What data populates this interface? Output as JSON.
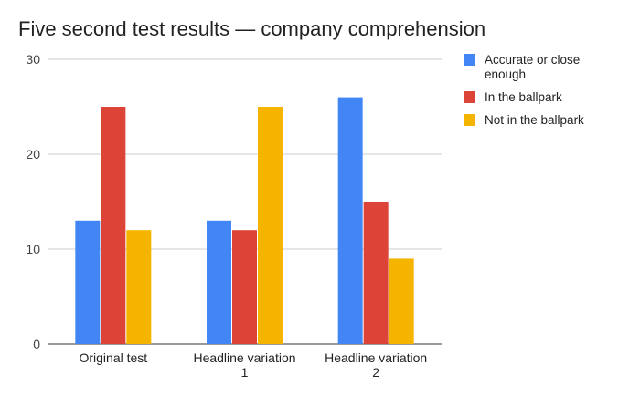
{
  "chart_data": {
    "type": "bar",
    "title": "Five second test results — company comprehension",
    "categories": [
      "Original test",
      "Headline variation 1",
      "Headline variation 2"
    ],
    "series": [
      {
        "name": "Accurate or close enough",
        "color": "#4285f4",
        "values": [
          13,
          13,
          26
        ]
      },
      {
        "name": "In the ballpark",
        "color": "#db4437",
        "values": [
          25,
          12,
          15
        ]
      },
      {
        "name": "Not in the ballpark",
        "color": "#f4b400",
        "values": [
          12,
          25,
          9
        ]
      }
    ],
    "ylim": [
      0,
      30
    ],
    "yticks": [
      0,
      10,
      20,
      30
    ],
    "grid": true,
    "legend": "right"
  }
}
